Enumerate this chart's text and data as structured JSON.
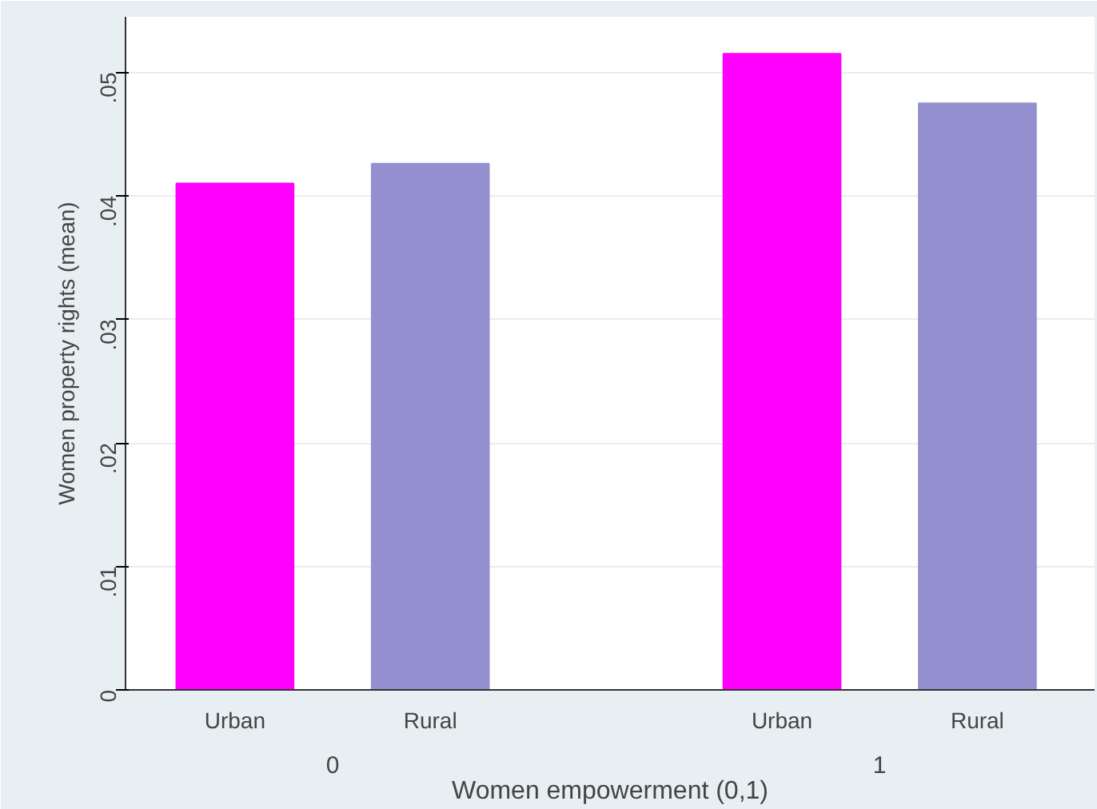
{
  "chart_data": {
    "type": "bar",
    "xlabel": "Women empowerment (0,1)",
    "ylabel": "Women property rights (mean)",
    "categories": [
      "Urban",
      "Rural",
      "Urban",
      "Rural"
    ],
    "values": [
      0.041,
      0.0426,
      0.0515,
      0.0475
    ],
    "colors": [
      "#ff00ff",
      "#9490d0",
      "#ff00ff",
      "#9490d0"
    ],
    "annotations": [
      "0",
      "1"
    ],
    "ylim": [
      0,
      0.0545
    ],
    "yticks": [
      {
        "value": 0,
        "label": "0"
      },
      {
        "value": 0.01,
        "label": ".01"
      },
      {
        "value": 0.02,
        "label": ".02"
      },
      {
        "value": 0.03,
        "label": ".03"
      },
      {
        "value": 0.04,
        "label": ".04"
      },
      {
        "value": 0.05,
        "label": ".05"
      }
    ],
    "grid": "y"
  }
}
